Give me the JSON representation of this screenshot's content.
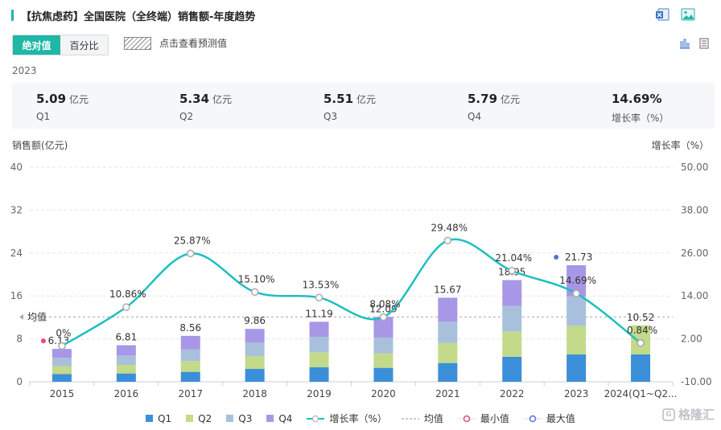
{
  "header": {
    "title": "【抗焦虑药】全国医院（全终端）销售额-年度趋势"
  },
  "toolbar": {
    "abs_label": "绝对值",
    "pct_label": "百分比",
    "forecast_label": "点击查看预测值"
  },
  "summary": {
    "year": "2023",
    "items": [
      {
        "value": "5.09",
        "unit": "亿元",
        "label": "Q1"
      },
      {
        "value": "5.34",
        "unit": "亿元",
        "label": "Q2"
      },
      {
        "value": "5.51",
        "unit": "亿元",
        "label": "Q3"
      },
      {
        "value": "5.79",
        "unit": "亿元",
        "label": "Q4"
      },
      {
        "value": "14.69%",
        "unit": "",
        "label": "增长率（%）"
      }
    ]
  },
  "chart_data": {
    "type": "bar",
    "stacked": true,
    "categories": [
      "2015",
      "2016",
      "2017",
      "2018",
      "2019",
      "2020",
      "2021",
      "2022",
      "2023",
      "2024(Q1~Q2..."
    ],
    "series": [
      {
        "name": "Q1",
        "color": "#3b8fd9",
        "values": [
          1.45,
          1.55,
          1.85,
          2.4,
          2.7,
          2.6,
          3.5,
          4.65,
          5.09,
          5.1
        ]
      },
      {
        "name": "Q2",
        "color": "#c2da8a",
        "values": [
          1.45,
          1.6,
          2.0,
          2.4,
          2.8,
          2.7,
          3.7,
          4.75,
          5.34,
          5.42
        ]
      },
      {
        "name": "Q3",
        "color": "#a8c0dc",
        "values": [
          1.55,
          1.75,
          2.2,
          2.5,
          2.85,
          2.95,
          4.0,
          4.75,
          5.51,
          0
        ]
      },
      {
        "name": "Q4",
        "color": "#a897e6",
        "values": [
          1.68,
          1.91,
          2.51,
          2.56,
          2.84,
          3.84,
          4.47,
          4.8,
          5.79,
          0
        ]
      }
    ],
    "totals": [
      "6.13",
      "6.81",
      "8.56",
      "9.86",
      "11.19",
      "12.09",
      "15.67",
      "18.95",
      "21.73",
      "10.52"
    ],
    "growth": {
      "name": "增长率（%）",
      "color": "#1fbfbf",
      "values": [
        0,
        10.86,
        25.87,
        15.1,
        13.53,
        8.08,
        29.48,
        21.04,
        14.69,
        0.84
      ],
      "labels": [
        "0%",
        "10.86%",
        "25.87%",
        "15.10%",
        "13.53%",
        "8.08%",
        "29.48%",
        "21.04%",
        "14.69%",
        "0.84%"
      ]
    },
    "left_axis": {
      "label": "销售额(亿元)",
      "min": 0,
      "max": 40,
      "ticks": [
        "0",
        "8",
        "16",
        "24",
        "32",
        "40"
      ]
    },
    "right_axis": {
      "label": "增长率（%）",
      "min": -10,
      "max": 50,
      "ticks": [
        "-10.00",
        "2.00",
        "14.00",
        "26.00",
        "38.00",
        "50.00"
      ]
    },
    "average": {
      "label": "均值",
      "value": 12.07
    },
    "min_marker": {
      "index": 0,
      "color": "#e64980"
    },
    "max_marker": {
      "index": 8,
      "color": "#5b6fd6"
    }
  },
  "legend": {
    "items": [
      {
        "name": "Q1",
        "type": "square",
        "color": "#3b8fd9"
      },
      {
        "name": "Q2",
        "type": "square",
        "color": "#c2da8a"
      },
      {
        "name": "Q3",
        "type": "square",
        "color": "#a8c0dc"
      },
      {
        "name": "Q4",
        "type": "square",
        "color": "#a897e6"
      },
      {
        "name": "增长率（%）",
        "type": "line",
        "color": "#1fbfbf"
      },
      {
        "name": "均值",
        "type": "dash",
        "color": "#999999"
      },
      {
        "name": "最小值",
        "type": "ring",
        "color": "#e64980"
      },
      {
        "name": "最大值",
        "type": "ring",
        "color": "#5b6fd6"
      }
    ]
  },
  "watermark": {
    "text": "格隆汇"
  }
}
